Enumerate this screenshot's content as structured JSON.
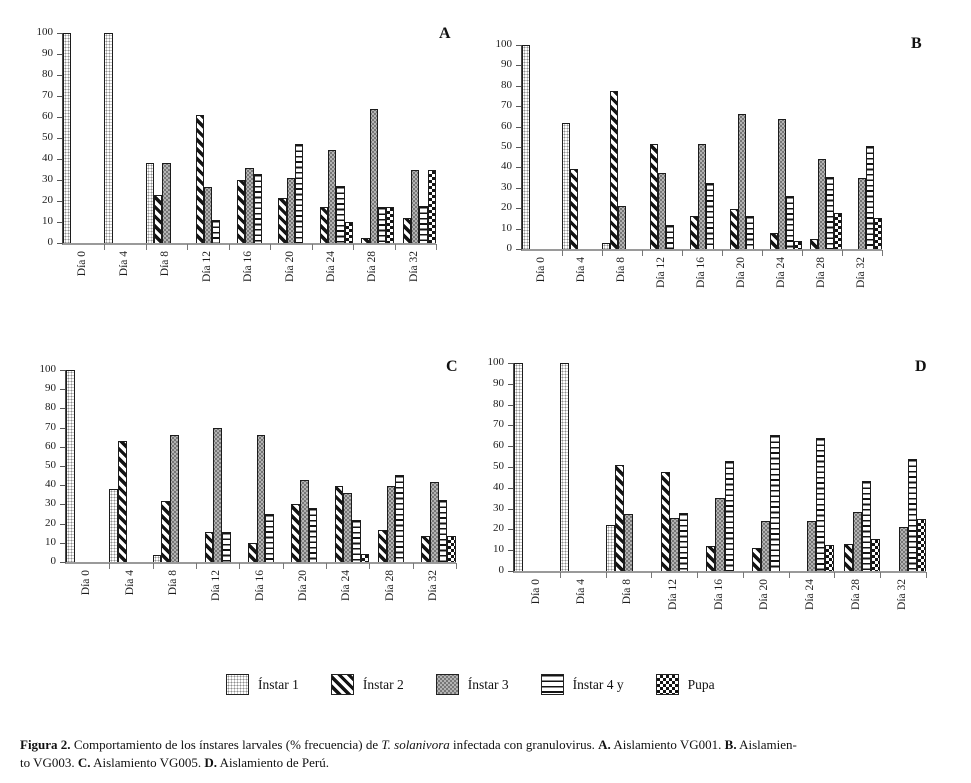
{
  "legend": {
    "items": [
      {
        "label": "Ínstar 1",
        "pattern": "instar1"
      },
      {
        "label": "Ínstar 2",
        "pattern": "instar2"
      },
      {
        "label": "Ínstar 3",
        "pattern": "instar3"
      },
      {
        "label": "Ínstar 4 y",
        "pattern": "instar4"
      },
      {
        "label": "Pupa",
        "pattern": "pupa"
      }
    ]
  },
  "caption": {
    "segments": [
      {
        "text": "Figura 2.",
        "bold": true
      },
      {
        "text": " Comportamiento de los ínstares larvales (% frecuencia) de "
      },
      {
        "text": "T. solanivora",
        "italic": true
      },
      {
        "text": " infectada con granulovirus. "
      },
      {
        "text": "A.",
        "bold": true
      },
      {
        "text": " Aislamiento VG001. "
      },
      {
        "text": "B.",
        "bold": true
      },
      {
        "text": " Aislamien-"
      },
      {
        "break": true
      },
      {
        "text": "to VG003. "
      },
      {
        "text": "C.",
        "bold": true
      },
      {
        "text": " Aislamiento VG005. "
      },
      {
        "text": "D.",
        "bold": true
      },
      {
        "text": " Aislamiento de Perú."
      }
    ]
  },
  "chart_data": [
    {
      "type": "bar",
      "panel_label": "A",
      "ylim": [
        0,
        100
      ],
      "ytick_step": 10,
      "grid": false,
      "legend_position": "bottom-shared",
      "categories": [
        "Día 0",
        "Día 4",
        "Día 8",
        "Día 12",
        "Día 16",
        "Día 20",
        "Día 24",
        "Día 28",
        "Día 32"
      ],
      "series": [
        {
          "name": "Ínstar 1",
          "pattern": "instar1",
          "values": [
            100,
            100,
            38,
            0,
            0,
            0,
            0,
            0,
            0
          ]
        },
        {
          "name": "Ínstar 2",
          "pattern": "instar2",
          "values": [
            0,
            0,
            23,
            61,
            30,
            21.5,
            17,
            2.5,
            12
          ]
        },
        {
          "name": "Ínstar 3",
          "pattern": "instar3",
          "values": [
            0,
            0,
            38,
            26.5,
            35.5,
            31,
            44.5,
            64,
            35
          ]
        },
        {
          "name": "Ínstar 4 y",
          "pattern": "instar4",
          "values": [
            0,
            0,
            0,
            11,
            33,
            47,
            27,
            17,
            17.5
          ]
        },
        {
          "name": "Pupa",
          "pattern": "pupa",
          "values": [
            0,
            0,
            0,
            0,
            0,
            0,
            10,
            17,
            35
          ]
        }
      ]
    },
    {
      "type": "bar",
      "panel_label": "B",
      "ylim": [
        0,
        100
      ],
      "ytick_step": 10,
      "grid": false,
      "legend_position": "bottom-shared",
      "categories": [
        "Día 0",
        "Día 4",
        "Día 8",
        "Día 12",
        "Día 16",
        "Día 20",
        "Día 24",
        "Día 28",
        "Día 32"
      ],
      "series": [
        {
          "name": "Ínstar 1",
          "pattern": "instar1",
          "values": [
            100,
            62,
            3,
            0,
            0,
            0,
            0,
            0,
            0
          ]
        },
        {
          "name": "Ínstar 2",
          "pattern": "instar2",
          "values": [
            0,
            39,
            77.5,
            51.5,
            16,
            19.5,
            8,
            5,
            0
          ]
        },
        {
          "name": "Ínstar 3",
          "pattern": "instar3",
          "values": [
            0,
            0,
            21,
            37.5,
            51.5,
            66,
            63.5,
            44,
            35
          ]
        },
        {
          "name": "Ínstar 4 y",
          "pattern": "instar4",
          "values": [
            0,
            0,
            0,
            12,
            32.5,
            16,
            26,
            35.5,
            50.5
          ]
        },
        {
          "name": "Pupa",
          "pattern": "pupa",
          "values": [
            0,
            0,
            0,
            0,
            0,
            0,
            4,
            17.5,
            15
          ]
        }
      ]
    },
    {
      "type": "bar",
      "panel_label": "C",
      "ylim": [
        0,
        100
      ],
      "ytick_step": 10,
      "grid": false,
      "legend_position": "bottom-shared",
      "categories": [
        "Día 0",
        "Día 4",
        "Día 8",
        "Día 12",
        "Día 16",
        "Día 20",
        "Día 24",
        "Día 28",
        "Día 32"
      ],
      "series": [
        {
          "name": "Ínstar 1",
          "pattern": "instar1",
          "values": [
            100,
            38,
            3.5,
            0,
            0,
            0,
            0,
            0,
            0
          ]
        },
        {
          "name": "Ínstar 2",
          "pattern": "instar2",
          "values": [
            0,
            63,
            32,
            15.5,
            10,
            30,
            39.5,
            16.5,
            13.5
          ]
        },
        {
          "name": "Ínstar 3",
          "pattern": "instar3",
          "values": [
            0,
            0,
            66,
            70,
            66,
            42.5,
            36,
            39.5,
            41.5
          ]
        },
        {
          "name": "Ínstar 4 y",
          "pattern": "instar4",
          "values": [
            0,
            0,
            0,
            15.5,
            25,
            28,
            22,
            45.5,
            32.5
          ]
        },
        {
          "name": "Pupa",
          "pattern": "pupa",
          "values": [
            0,
            0,
            0,
            0,
            0,
            0,
            4,
            0,
            13.5
          ]
        }
      ]
    },
    {
      "type": "bar",
      "panel_label": "D",
      "ylim": [
        0,
        100
      ],
      "ytick_step": 10,
      "grid": false,
      "legend_position": "bottom-shared",
      "categories": [
        "Día 0",
        "Día 4",
        "Día 8",
        "Día 12",
        "Día 16",
        "Día 20",
        "Día 24",
        "Día 28",
        "Día 32"
      ],
      "series": [
        {
          "name": "Ínstar 1",
          "pattern": "instar1",
          "values": [
            100,
            100,
            22,
            0,
            0,
            0,
            0,
            0,
            0
          ]
        },
        {
          "name": "Ínstar 2",
          "pattern": "instar2",
          "values": [
            0,
            0,
            51,
            47.5,
            12,
            11,
            0,
            13,
            0
          ]
        },
        {
          "name": "Ínstar 3",
          "pattern": "instar3",
          "values": [
            0,
            0,
            27.5,
            25.5,
            35,
            24,
            24,
            28.5,
            21
          ]
        },
        {
          "name": "Ínstar 4 y",
          "pattern": "instar4",
          "values": [
            0,
            0,
            0,
            28,
            53,
            65.5,
            64,
            43.5,
            54
          ]
        },
        {
          "name": "Pupa",
          "pattern": "pupa",
          "values": [
            0,
            0,
            0,
            0,
            0,
            0,
            12.5,
            15.5,
            25
          ]
        }
      ]
    }
  ]
}
